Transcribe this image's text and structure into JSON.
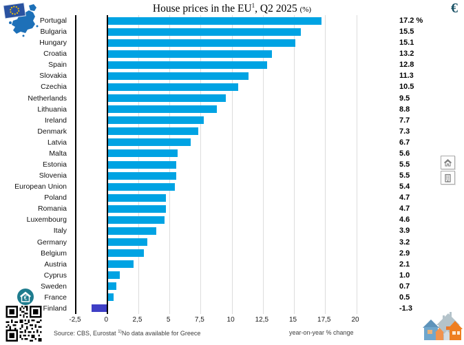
{
  "header": {
    "title_main": "House prices in the EU",
    "title_sup": "1",
    "title_rest": ", Q2 2025 ",
    "title_unit": "(%)",
    "euro_symbol": "€"
  },
  "chart_data": {
    "type": "bar",
    "orientation": "horizontal",
    "title": "House prices in the EU, Q2 2025 (%)",
    "categories": [
      "Portugal",
      "Bulgaria",
      "Hungary",
      "Croatia",
      "Spain",
      "Slovakia",
      "Czechia",
      "Netherlands",
      "Lithuania",
      "Ireland",
      "Denmark",
      "Latvia",
      "Malta",
      "Estonia",
      "Slovenia",
      "European Union",
      "Poland",
      "Romania",
      "Luxembourg",
      "Italy",
      "Germany",
      "Belgium",
      "Austria",
      "Cyprus",
      "Sweden",
      "France",
      "Finland"
    ],
    "values": [
      17.2,
      15.5,
      15.1,
      13.2,
      12.8,
      11.3,
      10.5,
      9.5,
      8.8,
      7.7,
      7.3,
      6.7,
      5.6,
      5.5,
      5.5,
      5.4,
      4.7,
      4.7,
      4.6,
      3.9,
      3.2,
      2.9,
      2.1,
      1.0,
      0.7,
      0.5,
      -1.3
    ],
    "value_labels": [
      "17.2 %",
      "15.5",
      "15.1",
      "13.2",
      "12.8",
      "11.3",
      "10.5",
      "9.5",
      "8.8",
      "7.7",
      "7.3",
      "6.7",
      "5.6",
      "5.5",
      "5.5",
      "5.4",
      "4.7",
      "4.7",
      "4.6",
      "3.9",
      "3.2",
      "2.9",
      "2.1",
      "1.0",
      "0.7",
      "0.5",
      "-1.3"
    ],
    "xlim": [
      -2.5,
      20
    ],
    "x_ticks": {
      "labels": [
        "-2,5",
        "0",
        "2,5",
        "5",
        "7,5",
        "10",
        "12,5",
        "15",
        "17,5",
        "20"
      ],
      "positions": [
        -2.5,
        0,
        2.5,
        5,
        7.5,
        10,
        12.5,
        15,
        17.5,
        20
      ]
    },
    "xlabel": "year-on-year % change",
    "grid": "vertical gridlines every 2.5, zero line black",
    "legend": "none",
    "bar_color": "#00a3e3",
    "negative_bar_color": "#3f3fc6"
  },
  "footer": {
    "source_label": "Source: CBS, Eurostat",
    "note_sup": "1)",
    "note_text": "No data available for Greece",
    "axis_caption": "year-on-year % change"
  },
  "side_buttons": [
    {
      "name": "house-prices-view-button",
      "icon": "house-icon"
    },
    {
      "name": "apartment-view-button",
      "icon": "building-icon"
    }
  ],
  "icons": {
    "top_left": "eu-map-flag-logo",
    "top_right": "euro-symbol",
    "bottom_left_badge": "house-euro-badge",
    "bottom_left_qr": "qr-code",
    "bottom_right": "houses-illustration"
  },
  "colors": {
    "bar": "#00a3e3",
    "negative_bar": "#3f3fc6",
    "euro_symbol": "#164f63",
    "eu_map_blue": "#1d70b8",
    "eu_flag_blue": "#2a52a0",
    "badge_teal": "#1e7c8e",
    "house_orange": "#ee7e20",
    "house_blue": "#6fa6cc",
    "house_gray": "#b4c3ca"
  }
}
